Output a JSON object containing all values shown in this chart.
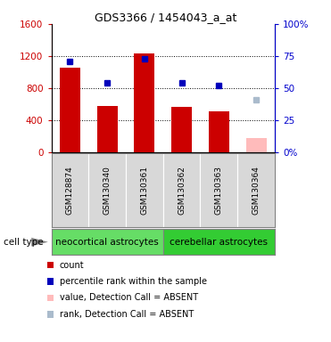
{
  "title": "GDS3366 / 1454043_a_at",
  "samples": [
    "GSM128874",
    "GSM130340",
    "GSM130361",
    "GSM130362",
    "GSM130363",
    "GSM130364"
  ],
  "red_bars": [
    1050,
    580,
    1230,
    560,
    510,
    null
  ],
  "pink_bars": [
    null,
    null,
    null,
    null,
    null,
    175
  ],
  "blue_squares": [
    1130,
    870,
    1160,
    860,
    830,
    null
  ],
  "light_blue_squares": [
    null,
    null,
    null,
    null,
    null,
    650
  ],
  "left_ylim": [
    0,
    1600
  ],
  "right_ylim": [
    0,
    100
  ],
  "left_yticks": [
    0,
    400,
    800,
    1200,
    1600
  ],
  "right_yticks": [
    0,
    25,
    50,
    75,
    100
  ],
  "left_yticklabels": [
    "0",
    "400",
    "800",
    "1200",
    "1600"
  ],
  "right_yticklabels": [
    "0%",
    "25",
    "50",
    "75",
    "100%"
  ],
  "groups": [
    {
      "label": "neocortical astrocytes",
      "n_samples": 3,
      "color": "#66dd66"
    },
    {
      "label": "cerebellar astrocytes",
      "n_samples": 3,
      "color": "#33cc33"
    }
  ],
  "cell_type_label": "cell type",
  "bar_color": "#cc0000",
  "pink_color": "#ffbbbb",
  "blue_color": "#0000bb",
  "light_blue_color": "#aabbcc",
  "bg_color": "#d8d8d8",
  "plot_bg": "#ffffff",
  "left_label_color": "#cc0000",
  "right_label_color": "#0000cc",
  "grid_ticks": [
    400,
    800,
    1200
  ],
  "legend_items": [
    {
      "color": "#cc0000",
      "label": "count",
      "size": 8
    },
    {
      "color": "#0000bb",
      "label": "percentile rank within the sample",
      "size": 7
    },
    {
      "color": "#ffbbbb",
      "label": "value, Detection Call = ABSENT",
      "size": 7
    },
    {
      "color": "#aabbcc",
      "label": "rank, Detection Call = ABSENT",
      "size": 7
    }
  ]
}
